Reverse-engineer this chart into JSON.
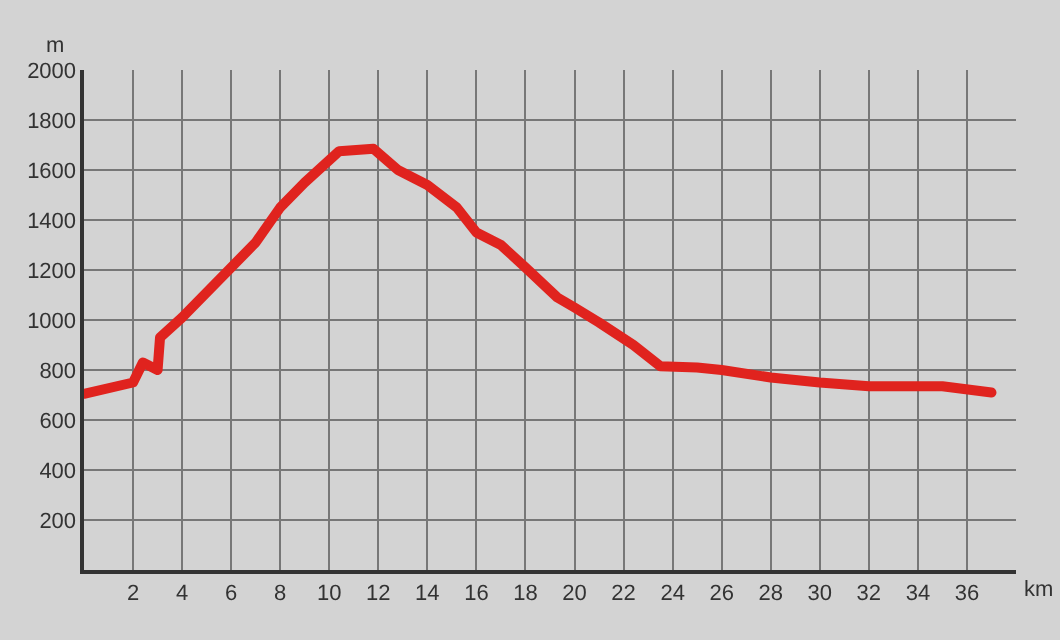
{
  "chart_data": {
    "type": "line",
    "xlabel": "km",
    "ylabel": "m",
    "x": [
      0,
      2,
      2.4,
      3,
      3.1,
      4,
      6,
      7,
      8,
      9,
      10.4,
      11.8,
      12.8,
      14,
      15.2,
      16,
      17,
      18,
      19.3,
      20,
      21,
      22.4,
      23.5,
      25,
      26,
      28,
      30,
      32,
      34,
      35,
      37
    ],
    "series": [
      {
        "color": "#e0231e",
        "values": [
          705,
          750,
          830,
          800,
          930,
          1010,
          1210,
          1310,
          1450,
          1550,
          1675,
          1685,
          1600,
          1540,
          1450,
          1350,
          1300,
          1210,
          1090,
          1050,
          990,
          900,
          815,
          810,
          800,
          770,
          750,
          735,
          735,
          735,
          710
        ]
      }
    ],
    "xlim": [
      0,
      38
    ],
    "ylim": [
      0,
      2000
    ],
    "xticks": [
      2,
      4,
      6,
      8,
      10,
      12,
      14,
      16,
      18,
      20,
      22,
      24,
      26,
      28,
      30,
      32,
      34,
      36
    ],
    "yticks": [
      200,
      400,
      600,
      800,
      1000,
      1200,
      1400,
      1600,
      1800,
      2000
    ],
    "grid": true,
    "legend": false,
    "marker": "none",
    "line_style": "solid"
  }
}
